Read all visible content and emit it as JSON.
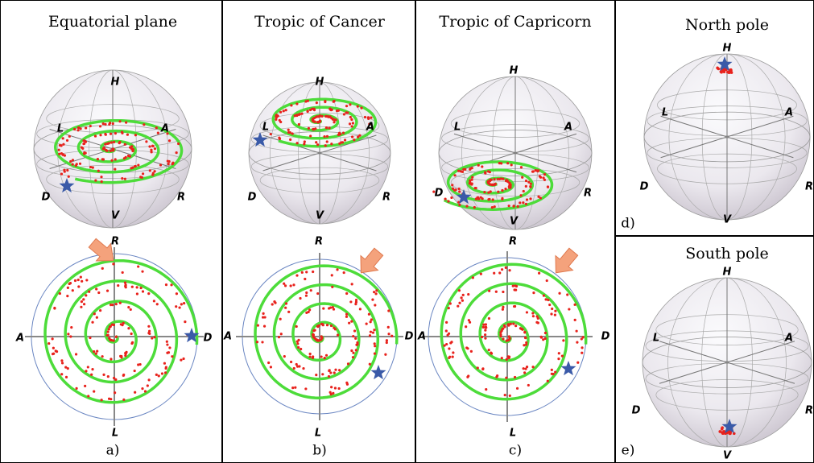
{
  "panels": [
    {
      "title": "Equatorial plane",
      "caption": "a)",
      "sphere_labels": [
        "H",
        "L",
        "A",
        "D",
        "R",
        "V"
      ],
      "polar_labels": [
        "R",
        "A",
        "D",
        "L"
      ]
    },
    {
      "title": "Tropic of Cancer",
      "caption": "b)",
      "sphere_labels": [
        "H",
        "L",
        "A",
        "D",
        "R",
        "V"
      ],
      "polar_labels": [
        "R",
        "A",
        "D",
        "L"
      ]
    },
    {
      "title": "Tropic of Capricorn",
      "caption": "c)",
      "sphere_labels": [
        "H",
        "L",
        "A",
        "D",
        "R",
        "V"
      ],
      "polar_labels": [
        "R",
        "A",
        "D",
        "L"
      ]
    },
    {
      "title": "North pole",
      "caption": "d)",
      "sphere_labels": [
        "H",
        "L",
        "A",
        "D",
        "R",
        "V"
      ]
    },
    {
      "title": "South pole",
      "caption": "e)",
      "sphere_labels": [
        "H",
        "L",
        "A",
        "D",
        "R",
        "V"
      ]
    }
  ]
}
